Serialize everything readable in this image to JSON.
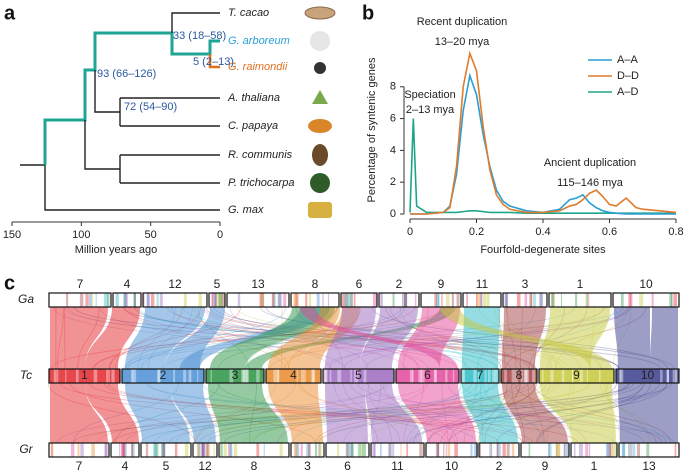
{
  "panel_labels": [
    "a",
    "b",
    "c"
  ],
  "tree": {
    "taxa": [
      "T. cacao",
      "G. arboreum",
      "G. raimondii",
      "A. thaliana",
      "C. papaya",
      "R. communis",
      "P. trichocarpa",
      "G. max"
    ],
    "node_labels": [
      "33 (18–58)",
      "5 (2–13)",
      "93 (66–126)",
      "72 (54–90)"
    ],
    "xlabel": "Million years ago",
    "xlim": [
      150,
      0
    ],
    "xticks": [
      150,
      100,
      50,
      0
    ]
  },
  "chart_data": {
    "type": "line",
    "xlabel": "Fourfold-degenerate sites",
    "ylabel": "Percentage of syntenic genes",
    "x": [
      0,
      0.01,
      0.02,
      0.05,
      0.1,
      0.12,
      0.14,
      0.16,
      0.18,
      0.2,
      0.22,
      0.24,
      0.26,
      0.28,
      0.3,
      0.35,
      0.4,
      0.45,
      0.48,
      0.5,
      0.52,
      0.54,
      0.56,
      0.58,
      0.6,
      0.62,
      0.65,
      0.68,
      0.7,
      0.75,
      0.8
    ],
    "series": [
      {
        "name": "A–A",
        "color": "#2a9fd6",
        "values": [
          0,
          0,
          0,
          0,
          0.1,
          0.5,
          2.5,
          6.5,
          8.7,
          7.5,
          5.0,
          3.0,
          1.5,
          0.8,
          0.5,
          0.2,
          0.1,
          0.3,
          0.9,
          1.0,
          1.2,
          0.7,
          0.4,
          0.2,
          0.1,
          0.05,
          0,
          0,
          0,
          0,
          0
        ]
      },
      {
        "name": "D–D",
        "color": "#e07b2b",
        "values": [
          0,
          0,
          0,
          0,
          0.1,
          0.4,
          3.0,
          8.0,
          10.1,
          9.0,
          5.5,
          2.8,
          1.2,
          0.6,
          0.3,
          0.1,
          0.1,
          0.2,
          0.5,
          0.6,
          0.9,
          1.3,
          1.5,
          1.1,
          0.6,
          0.5,
          1.0,
          0.4,
          0.3,
          0.2,
          0.1
        ]
      },
      {
        "name": "A–D",
        "color": "#1fa58a",
        "values": [
          0.1,
          6.0,
          0.5,
          0.1,
          0.1,
          0.1,
          0.1,
          0.15,
          0.2,
          0.2,
          0.15,
          0.1,
          0.1,
          0.1,
          0.1,
          0.05,
          0.05,
          0.05,
          0.05,
          0.05,
          0.05,
          0.05,
          0.05,
          0.05,
          0.05,
          0.05,
          0.05,
          0.05,
          0.05,
          0.05,
          0.05
        ]
      }
    ],
    "annotations": [
      "Recent duplication",
      "13–20 mya",
      "Speciation",
      "2–13 mya",
      "Ancient duplication",
      "115–146 mya"
    ],
    "xlim": [
      0,
      0.8
    ],
    "xticks": [
      0,
      0.2,
      0.4,
      0.6,
      0.8
    ],
    "ylim": [
      0,
      10.5
    ],
    "yticks": [
      0,
      2,
      4,
      6,
      8
    ],
    "legend": "upper right"
  },
  "synteny": {
    "rows": [
      {
        "label": "Ga",
        "chromosomes": [
          "7",
          "4",
          "12",
          "5",
          "13",
          "8",
          "6",
          "2",
          "9",
          "11",
          "3",
          "1",
          "10"
        ]
      },
      {
        "label": "Tc",
        "chromosomes": [
          "1",
          "2",
          "3",
          "4",
          "5",
          "6",
          "7",
          "8",
          "9",
          "10"
        ]
      },
      {
        "label": "Gr",
        "chromosomes": [
          "7",
          "4",
          "5",
          "12",
          "8",
          "3",
          "6",
          "11",
          "10",
          "2",
          "9",
          "1",
          "13"
        ]
      }
    ]
  }
}
